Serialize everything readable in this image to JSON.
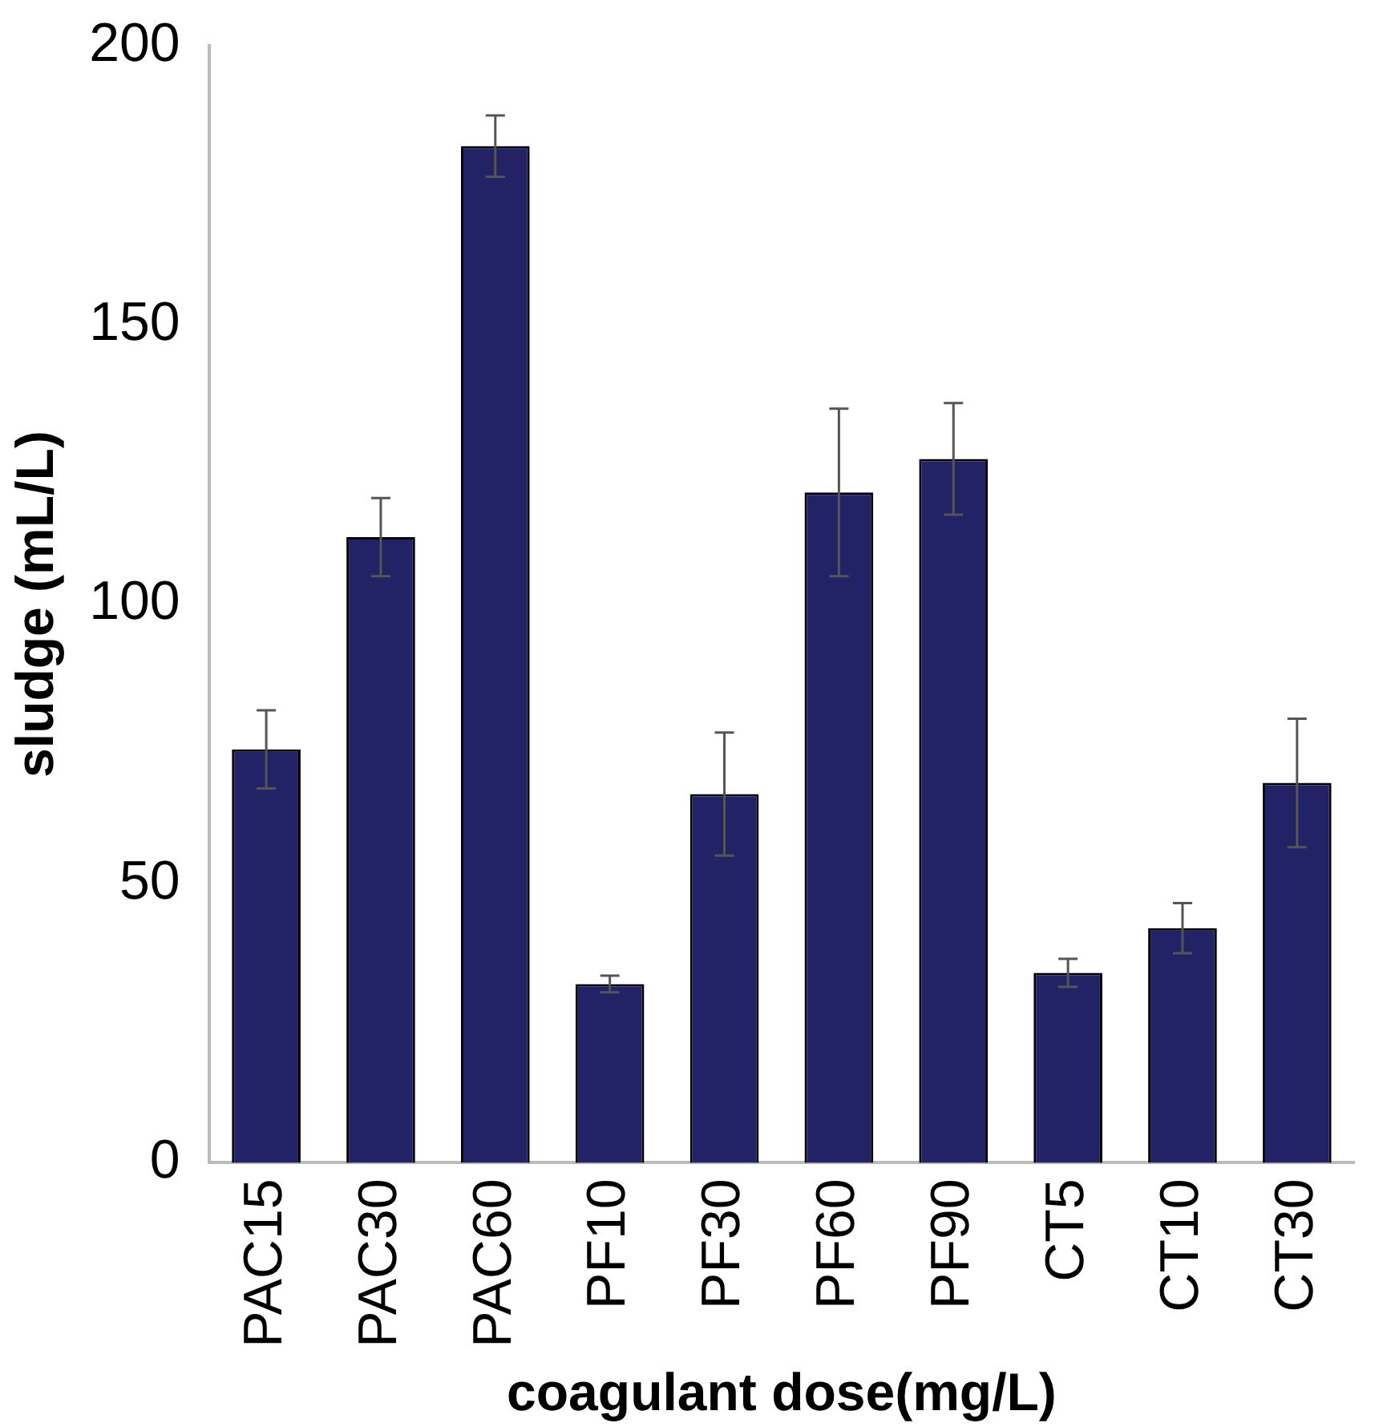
{
  "chart_data": {
    "type": "bar",
    "xlabel": "coagulant dose(mg/L)",
    "ylabel": "sludge (mL/L)",
    "categories": [
      "PAC15",
      "PAC30",
      "PAC60",
      "PF10",
      "PF30",
      "PF60",
      "PF90",
      "CT5",
      "CT10",
      "CT30"
    ],
    "values": [
      74,
      112,
      182,
      32,
      66,
      120,
      126,
      34,
      42,
      68
    ],
    "errors": [
      7,
      7,
      5.5,
      1.5,
      11,
      15,
      10,
      2.5,
      4.5,
      11.5
    ],
    "color": "#222266",
    "ylim": [
      0,
      200
    ],
    "yticks": [
      0,
      50,
      100,
      150,
      200
    ],
    "grid": false,
    "legend": false
  }
}
